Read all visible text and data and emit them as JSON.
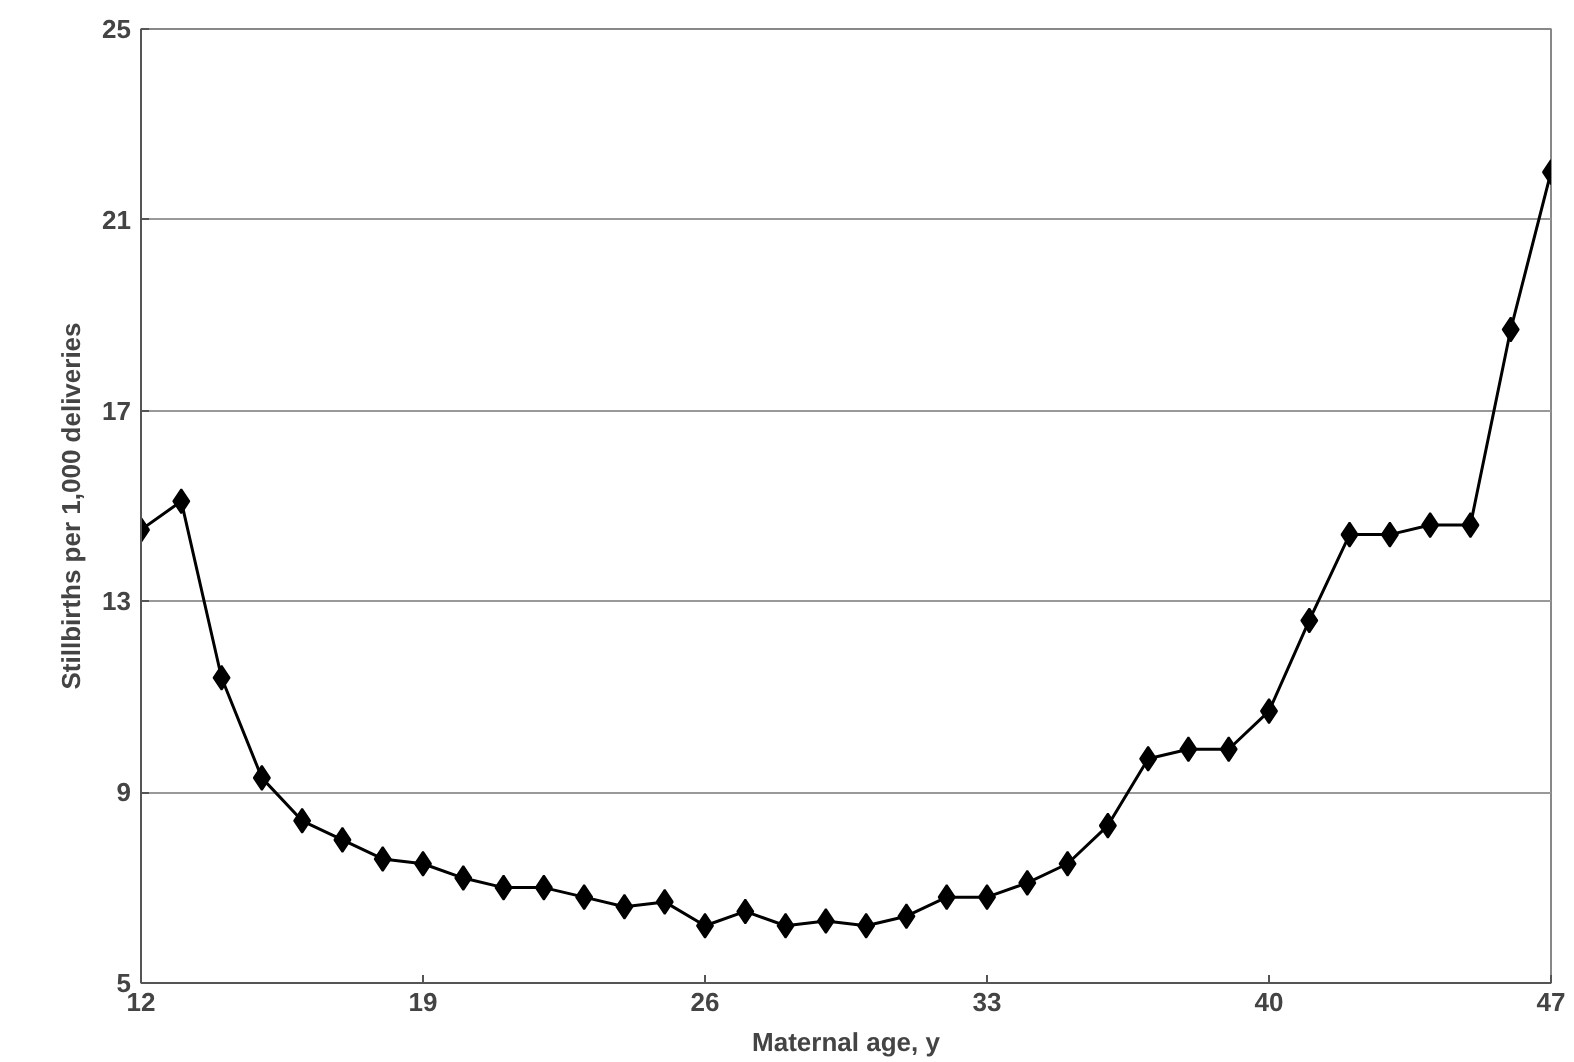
{
  "chart_data": {
    "type": "line",
    "xlabel": "Maternal age, y",
    "ylabel": "Stillbirths per 1,000 deliveries",
    "x": [
      12,
      13,
      14,
      15,
      16,
      17,
      18,
      19,
      20,
      21,
      22,
      23,
      24,
      25,
      26,
      27,
      28,
      29,
      30,
      31,
      32,
      33,
      34,
      35,
      36,
      37,
      38,
      39,
      40,
      41,
      42,
      43,
      44,
      45,
      46,
      47
    ],
    "series": [
      {
        "color": "#000000",
        "values": [
          14.5,
          15.1,
          11.4,
          9.3,
          8.4,
          8.0,
          7.6,
          7.5,
          7.2,
          7.0,
          7.0,
          6.8,
          6.6,
          6.7,
          6.2,
          6.5,
          6.2,
          6.3,
          6.2,
          6.4,
          6.8,
          6.8,
          7.1,
          7.5,
          8.3,
          9.7,
          9.9,
          9.9,
          10.7,
          12.6,
          14.4,
          14.4,
          14.6,
          14.6,
          18.7,
          22.0
        ]
      }
    ],
    "xlim": [
      12,
      47
    ],
    "ylim": [
      5,
      25
    ],
    "xticks": [
      12,
      19,
      26,
      33,
      40,
      47
    ],
    "yticks": [
      5,
      9,
      13,
      17,
      21,
      25
    ],
    "grid": "y",
    "marker": "diamond",
    "line_style": "solid"
  }
}
